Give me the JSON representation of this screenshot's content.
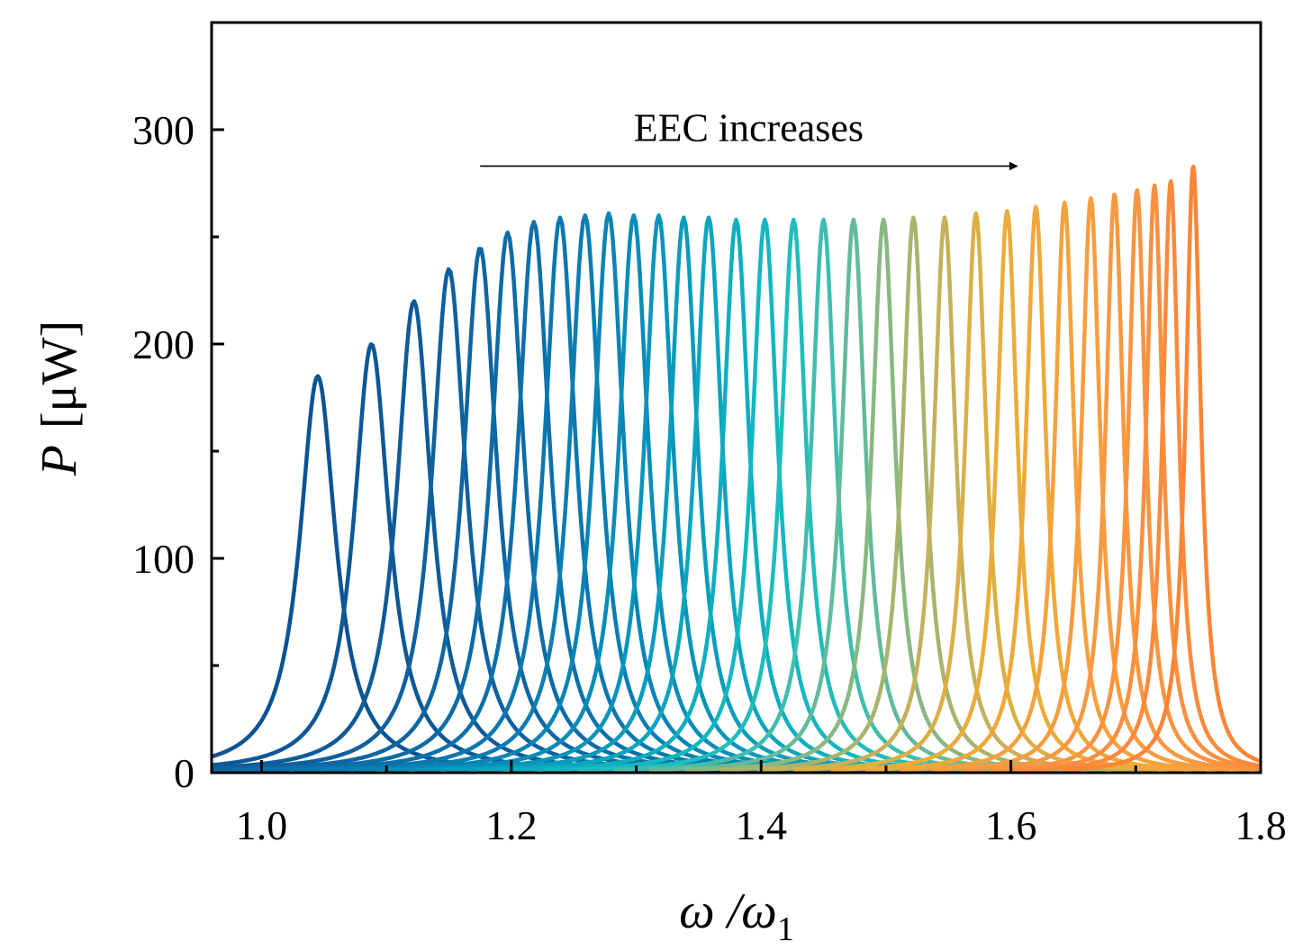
{
  "chart_data": {
    "type": "line",
    "xlabel": {
      "main": "ω /ω",
      "sub": "1"
    },
    "ylabel": {
      "main": "P",
      "unit": "[μW]"
    },
    "xlim": [
      0.96,
      1.8
    ],
    "ylim": [
      0,
      350
    ],
    "xticks": [
      1.0,
      1.2,
      1.4,
      1.6,
      1.8
    ],
    "xtick_labels": [
      "1.0",
      "1.2",
      "1.4",
      "1.6",
      "1.8"
    ],
    "yticks": [
      0,
      100,
      200,
      300
    ],
    "ytick_labels": [
      "0",
      "100",
      "200",
      "300"
    ],
    "y_minor_ticks": [
      50,
      150,
      250
    ],
    "grid": false,
    "annotation": {
      "text": "EEC increases",
      "arrow_from": [
        1.175,
        283
      ],
      "arrow_to": [
        1.605,
        283
      ]
    },
    "peaks": [
      {
        "x": 1.045,
        "y": 185,
        "color": "#0b5393"
      },
      {
        "x": 1.088,
        "y": 200,
        "color": "#0d5796"
      },
      {
        "x": 1.122,
        "y": 220,
        "color": "#0e5b9a"
      },
      {
        "x": 1.15,
        "y": 235,
        "color": "#0e609e"
      },
      {
        "x": 1.175,
        "y": 245,
        "color": "#0e65a2"
      },
      {
        "x": 1.197,
        "y": 252,
        "color": "#0d6ba6"
      },
      {
        "x": 1.218,
        "y": 257,
        "color": "#0c70aa"
      },
      {
        "x": 1.239,
        "y": 259,
        "color": "#0b77ae"
      },
      {
        "x": 1.259,
        "y": 260,
        "color": "#0a7db2"
      },
      {
        "x": 1.278,
        "y": 261,
        "color": "#0984b5"
      },
      {
        "x": 1.298,
        "y": 260,
        "color": "#098cb8"
      },
      {
        "x": 1.318,
        "y": 260,
        "color": "#0994ba"
      },
      {
        "x": 1.338,
        "y": 259,
        "color": "#0a9cbc"
      },
      {
        "x": 1.358,
        "y": 259,
        "color": "#0ba5be"
      },
      {
        "x": 1.38,
        "y": 258,
        "color": "#0eaebf"
      },
      {
        "x": 1.403,
        "y": 258,
        "color": "#13b7c0"
      },
      {
        "x": 1.426,
        "y": 258,
        "color": "#1fbdbc"
      },
      {
        "x": 1.45,
        "y": 258,
        "color": "#3fbdad"
      },
      {
        "x": 1.474,
        "y": 258,
        "color": "#62bb98"
      },
      {
        "x": 1.498,
        "y": 258,
        "color": "#88b882"
      },
      {
        "x": 1.522,
        "y": 259,
        "color": "#a6b46c"
      },
      {
        "x": 1.547,
        "y": 259,
        "color": "#c4b15a"
      },
      {
        "x": 1.572,
        "y": 261,
        "color": "#dcaf45"
      },
      {
        "x": 1.597,
        "y": 262,
        "color": "#eaad3a"
      },
      {
        "x": 1.62,
        "y": 264,
        "color": "#f0a83a"
      },
      {
        "x": 1.643,
        "y": 266,
        "color": "#f5a23d"
      },
      {
        "x": 1.664,
        "y": 268,
        "color": "#f79d3e"
      },
      {
        "x": 1.683,
        "y": 270,
        "color": "#f89840"
      },
      {
        "x": 1.701,
        "y": 272,
        "color": "#f99441"
      },
      {
        "x": 1.715,
        "y": 274,
        "color": "#fa8f40"
      },
      {
        "x": 1.728,
        "y": 276,
        "color": "#fb8a3d"
      },
      {
        "x": 1.746,
        "y": 283,
        "color": "#fc8535"
      }
    ],
    "line_width_data_note": "",
    "frame_color": "#000000"
  }
}
